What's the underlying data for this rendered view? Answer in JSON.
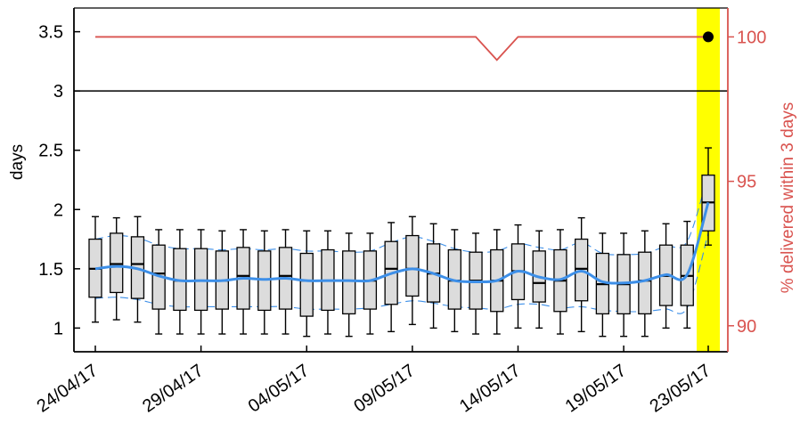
{
  "chart_data": {
    "type": "box",
    "ylabel": "days",
    "y2label": "% delivered within 3 days",
    "ylim": [
      0.8,
      3.7
    ],
    "y2lim": [
      89.1,
      101.0
    ],
    "yticks": [
      1,
      1.5,
      2,
      2.5,
      3,
      3.5
    ],
    "y2ticks": [
      90,
      95,
      100
    ],
    "xtick_labels": [
      {
        "label": "24/04/17",
        "index": 0
      },
      {
        "label": "29/04/17",
        "index": 5
      },
      {
        "label": "04/05/17",
        "index": 10
      },
      {
        "label": "09/05/17",
        "index": 15
      },
      {
        "label": "14/05/17",
        "index": 20
      },
      {
        "label": "19/05/17",
        "index": 25
      },
      {
        "label": "23/05/17",
        "index": 29
      }
    ],
    "highlight_index": 29,
    "highlight_color": "#ffff00",
    "threshold_line": 3,
    "boxes": [
      {
        "whisker_low": 1.05,
        "q1": 1.26,
        "median": 1.5,
        "q3": 1.75,
        "whisker_high": 1.94
      },
      {
        "whisker_low": 1.07,
        "q1": 1.3,
        "median": 1.54,
        "q3": 1.8,
        "whisker_high": 1.93
      },
      {
        "whisker_low": 1.05,
        "q1": 1.25,
        "median": 1.54,
        "q3": 1.77,
        "whisker_high": 1.94
      },
      {
        "whisker_low": 0.95,
        "q1": 1.16,
        "median": 1.46,
        "q3": 1.7,
        "whisker_high": 1.83
      },
      {
        "whisker_low": 0.95,
        "q1": 1.15,
        "median": 1.4,
        "q3": 1.67,
        "whisker_high": 1.83
      },
      {
        "whisker_low": 0.95,
        "q1": 1.15,
        "median": 1.4,
        "q3": 1.67,
        "whisker_high": 1.83
      },
      {
        "whisker_low": 0.95,
        "q1": 1.16,
        "median": 1.4,
        "q3": 1.65,
        "whisker_high": 1.82
      },
      {
        "whisker_low": 0.95,
        "q1": 1.16,
        "median": 1.44,
        "q3": 1.68,
        "whisker_high": 1.83
      },
      {
        "whisker_low": 0.95,
        "q1": 1.15,
        "median": 1.41,
        "q3": 1.65,
        "whisker_high": 1.82
      },
      {
        "whisker_low": 0.95,
        "q1": 1.16,
        "median": 1.44,
        "q3": 1.68,
        "whisker_high": 1.83
      },
      {
        "whisker_low": 0.93,
        "q1": 1.1,
        "median": 1.4,
        "q3": 1.63,
        "whisker_high": 1.82
      },
      {
        "whisker_low": 0.95,
        "q1": 1.15,
        "median": 1.4,
        "q3": 1.66,
        "whisker_high": 1.82
      },
      {
        "whisker_low": 0.93,
        "q1": 1.12,
        "median": 1.4,
        "q3": 1.65,
        "whisker_high": 1.8
      },
      {
        "whisker_low": 0.95,
        "q1": 1.16,
        "median": 1.4,
        "q3": 1.65,
        "whisker_high": 1.8
      },
      {
        "whisker_low": 0.97,
        "q1": 1.2,
        "median": 1.5,
        "q3": 1.73,
        "whisker_high": 1.89
      },
      {
        "whisker_low": 1.03,
        "q1": 1.27,
        "median": 1.5,
        "q3": 1.78,
        "whisker_high": 1.94
      },
      {
        "whisker_low": 1.0,
        "q1": 1.22,
        "median": 1.46,
        "q3": 1.71,
        "whisker_high": 1.88
      },
      {
        "whisker_low": 0.97,
        "q1": 1.16,
        "median": 1.4,
        "q3": 1.66,
        "whisker_high": 1.83
      },
      {
        "whisker_low": 0.95,
        "q1": 1.16,
        "median": 1.4,
        "q3": 1.64,
        "whisker_high": 1.8
      },
      {
        "whisker_low": 0.95,
        "q1": 1.14,
        "median": 1.4,
        "q3": 1.66,
        "whisker_high": 1.83
      },
      {
        "whisker_low": 1.0,
        "q1": 1.24,
        "median": 1.48,
        "q3": 1.71,
        "whisker_high": 1.87
      },
      {
        "whisker_low": 1.0,
        "q1": 1.22,
        "median": 1.38,
        "q3": 1.65,
        "whisker_high": 1.82
      },
      {
        "whisker_low": 0.95,
        "q1": 1.14,
        "median": 1.4,
        "q3": 1.66,
        "whisker_high": 1.83
      },
      {
        "whisker_low": 0.97,
        "q1": 1.23,
        "median": 1.5,
        "q3": 1.75,
        "whisker_high": 1.93
      },
      {
        "whisker_low": 0.93,
        "q1": 1.12,
        "median": 1.37,
        "q3": 1.63,
        "whisker_high": 1.8
      },
      {
        "whisker_low": 0.93,
        "q1": 1.12,
        "median": 1.37,
        "q3": 1.62,
        "whisker_high": 1.8
      },
      {
        "whisker_low": 0.93,
        "q1": 1.12,
        "median": 1.4,
        "q3": 1.64,
        "whisker_high": 1.82
      },
      {
        "whisker_low": 1.0,
        "q1": 1.19,
        "median": 1.44,
        "q3": 1.7,
        "whisker_high": 1.88
      },
      {
        "whisker_low": 1.0,
        "q1": 1.19,
        "median": 1.44,
        "q3": 1.7,
        "whisker_high": 1.9
      },
      {
        "whisker_low": 1.7,
        "q1": 1.82,
        "median": 2.06,
        "q3": 2.29,
        "whisker_high": 2.52
      }
    ],
    "series": [
      {
        "name": "median smooth",
        "color": "#3d8fe8",
        "values": [
          1.5,
          1.52,
          1.5,
          1.44,
          1.4,
          1.4,
          1.4,
          1.42,
          1.41,
          1.42,
          1.4,
          1.4,
          1.4,
          1.4,
          1.46,
          1.5,
          1.46,
          1.4,
          1.39,
          1.4,
          1.48,
          1.43,
          1.41,
          1.48,
          1.39,
          1.38,
          1.4,
          1.45,
          1.45,
          2.06
        ]
      },
      {
        "name": "lower band",
        "color": "#3d8fe8",
        "values": [
          1.25,
          1.26,
          1.24,
          1.2,
          1.18,
          1.18,
          1.18,
          1.18,
          1.18,
          1.18,
          1.16,
          1.16,
          1.16,
          1.17,
          1.2,
          1.23,
          1.21,
          1.18,
          1.17,
          1.16,
          1.2,
          1.2,
          1.17,
          1.18,
          1.15,
          1.14,
          1.14,
          1.16,
          1.17,
          1.8
        ]
      },
      {
        "name": "upper band",
        "color": "#3d8fe8",
        "values": [
          1.75,
          1.78,
          1.76,
          1.7,
          1.67,
          1.67,
          1.66,
          1.67,
          1.66,
          1.67,
          1.65,
          1.65,
          1.64,
          1.65,
          1.72,
          1.77,
          1.73,
          1.67,
          1.64,
          1.65,
          1.71,
          1.68,
          1.66,
          1.72,
          1.63,
          1.62,
          1.63,
          1.69,
          1.73,
          2.3
        ]
      },
      {
        "name": "% delivered within 3 days",
        "color": "#d9534f",
        "axis": "right",
        "values": [
          100,
          100,
          100,
          100,
          100,
          100,
          100,
          100,
          100,
          100,
          100,
          100,
          100,
          100,
          100,
          100,
          100,
          100,
          100,
          99.2,
          100,
          100,
          100,
          100,
          100,
          100,
          100,
          100,
          100,
          100
        ]
      }
    ],
    "highlight_point": {
      "index": 29,
      "y2": 100
    },
    "colors": {
      "box_fill": "#dcdcdc",
      "axis_right": "#d9534f",
      "band": "#3d8fe8",
      "threshold": "#000000"
    }
  }
}
